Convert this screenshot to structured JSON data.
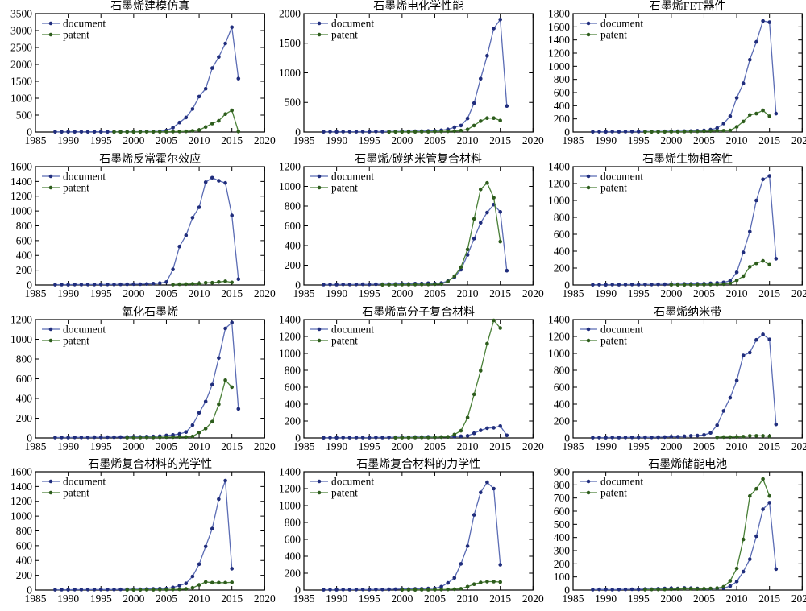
{
  "chart_data": {
    "type": "line",
    "x_axis": {
      "min": 1985,
      "max": 2020,
      "ticks": [
        1985,
        1990,
        1995,
        2000,
        2005,
        2010,
        2015,
        2020
      ]
    },
    "legend": {
      "position": "top-left-inside",
      "entries": [
        "document",
        "patent"
      ]
    },
    "grid": "off",
    "colors": {
      "document_line": "#5b6cb4",
      "document_marker": "#202d7c",
      "patent_line": "#4a8038",
      "patent_marker": "#2d5c1c",
      "axis": "#000000",
      "text": "#000000",
      "background": "#ffffff"
    },
    "charts": [
      {
        "title": "石墨烯建模仿真",
        "ylim": [
          0,
          3500
        ],
        "ystep": 500,
        "yticks": [
          0,
          500,
          1000,
          1500,
          2000,
          2500,
          3000,
          3500
        ],
        "document": {
          "start_year": 1988,
          "values": [
            4,
            5,
            4,
            6,
            5,
            6,
            7,
            6,
            8,
            7,
            9,
            10,
            12,
            11,
            14,
            15,
            18,
            45,
            130,
            280,
            430,
            680,
            1050,
            1280,
            1890,
            2220,
            2620,
            3100,
            1580
          ]
        },
        "patent": {
          "start_year": 1997,
          "values": [
            2,
            2,
            3,
            3,
            4,
            5,
            6,
            8,
            10,
            12,
            15,
            20,
            35,
            60,
            150,
            250,
            330,
            530,
            640,
            15
          ]
        }
      },
      {
        "title": "石墨烯电化学性能",
        "ylim": [
          0,
          2000
        ],
        "ystep": 500,
        "yticks": [
          0,
          500,
          1000,
          1500,
          2000
        ],
        "document": {
          "start_year": 1988,
          "values": [
            4,
            5,
            4,
            6,
            5,
            6,
            7,
            6,
            8,
            7,
            9,
            10,
            12,
            11,
            14,
            15,
            18,
            20,
            30,
            45,
            80,
            110,
            230,
            490,
            900,
            1290,
            1750,
            1900,
            440
          ]
        },
        "patent": {
          "start_year": 1998,
          "values": [
            2,
            3,
            3,
            4,
            4,
            5,
            6,
            8,
            10,
            12,
            15,
            25,
            45,
            110,
            185,
            235,
            235,
            195
          ]
        }
      },
      {
        "title": "石墨烯FET器件",
        "ylim": [
          0,
          1800
        ],
        "ystep": 200,
        "yticks": [
          0,
          200,
          400,
          600,
          800,
          1000,
          1200,
          1400,
          1600,
          1800
        ],
        "document": {
          "start_year": 1988,
          "values": [
            4,
            5,
            4,
            6,
            5,
            6,
            7,
            6,
            8,
            7,
            9,
            10,
            12,
            11,
            14,
            15,
            20,
            25,
            35,
            60,
            130,
            240,
            520,
            740,
            1100,
            1370,
            1690,
            1670,
            280
          ]
        },
        "patent": {
          "start_year": 1996,
          "values": [
            3,
            3,
            4,
            4,
            5,
            5,
            6,
            8,
            10,
            12,
            15,
            18,
            20,
            25,
            80,
            160,
            260,
            280,
            330,
            240
          ]
        }
      },
      {
        "title": "石墨烯反常霍尔效应",
        "ylim": [
          0,
          1600
        ],
        "ystep": 200,
        "yticks": [
          0,
          200,
          400,
          600,
          800,
          1000,
          1200,
          1400,
          1600
        ],
        "document": {
          "start_year": 1988,
          "values": [
            4,
            5,
            4,
            6,
            5,
            6,
            7,
            6,
            8,
            7,
            9,
            10,
            12,
            11,
            14,
            18,
            25,
            40,
            210,
            520,
            670,
            910,
            1050,
            1390,
            1450,
            1410,
            1380,
            940,
            80
          ]
        },
        "patent": {
          "start_year": 2006,
          "values": [
            5,
            10,
            12,
            15,
            18,
            30,
            30,
            40,
            50,
            35
          ]
        }
      },
      {
        "title": "石墨烯/碳纳米管复合材料",
        "ylim": [
          0,
          1200
        ],
        "ystep": 200,
        "yticks": [
          0,
          200,
          400,
          600,
          800,
          1000,
          1200
        ],
        "document": {
          "start_year": 1988,
          "values": [
            4,
            5,
            4,
            6,
            5,
            6,
            7,
            6,
            8,
            7,
            9,
            10,
            12,
            11,
            14,
            15,
            18,
            15,
            20,
            40,
            80,
            155,
            305,
            470,
            630,
            735,
            815,
            740,
            145
          ]
        },
        "patent": {
          "start_year": 1997,
          "values": [
            2,
            3,
            3,
            4,
            4,
            5,
            5,
            6,
            8,
            10,
            35,
            90,
            180,
            360,
            670,
            970,
            1035,
            885,
            440
          ]
        }
      },
      {
        "title": "石墨烯生物相容性",
        "ylim": [
          0,
          1400
        ],
        "ystep": 200,
        "yticks": [
          0,
          200,
          400,
          600,
          800,
          1000,
          1200,
          1400
        ],
        "document": {
          "start_year": 1988,
          "values": [
            3,
            4,
            3,
            5,
            4,
            5,
            6,
            5,
            7,
            6,
            8,
            9,
            10,
            9,
            12,
            12,
            14,
            15,
            20,
            25,
            30,
            50,
            150,
            385,
            630,
            1000,
            1250,
            1290,
            310
          ]
        },
        "patent": {
          "start_year": 2000,
          "values": [
            2,
            3,
            3,
            4,
            4,
            5,
            6,
            8,
            10,
            20,
            55,
            105,
            215,
            255,
            285,
            240
          ]
        }
      },
      {
        "title": "氧化石墨烯",
        "ylim": [
          0,
          1200
        ],
        "ystep": 200,
        "yticks": [
          0,
          200,
          400,
          600,
          800,
          1000,
          1200
        ],
        "document": {
          "start_year": 1988,
          "values": [
            4,
            5,
            4,
            6,
            5,
            6,
            7,
            6,
            8,
            7,
            9,
            10,
            12,
            11,
            14,
            15,
            18,
            25,
            30,
            40,
            60,
            130,
            255,
            370,
            540,
            810,
            1110,
            1170,
            295
          ]
        },
        "patent": {
          "start_year": 1999,
          "values": [
            3,
            4,
            4,
            5,
            5,
            6,
            8,
            8,
            10,
            10,
            15,
            55,
            95,
            165,
            340,
            585,
            515
          ]
        }
      },
      {
        "title": "石墨烯高分子复合材料",
        "ylim": [
          0,
          1400
        ],
        "ystep": 200,
        "yticks": [
          0,
          200,
          400,
          600,
          800,
          1000,
          1200,
          1400
        ],
        "document": {
          "start_year": 1988,
          "values": [
            3,
            4,
            3,
            5,
            4,
            5,
            5,
            4,
            6,
            5,
            7,
            8,
            9,
            8,
            10,
            10,
            12,
            8,
            10,
            12,
            15,
            20,
            25,
            55,
            90,
            115,
            120,
            140,
            30
          ]
        },
        "patent": {
          "start_year": 1999,
          "values": [
            3,
            4,
            4,
            5,
            6,
            6,
            8,
            10,
            12,
            40,
            85,
            240,
            515,
            795,
            1115,
            1390,
            1300
          ]
        }
      },
      {
        "title": "石墨烯纳米带",
        "ylim": [
          0,
          1400
        ],
        "ystep": 200,
        "yticks": [
          0,
          200,
          400,
          600,
          800,
          1000,
          1200,
          1400
        ],
        "document": {
          "start_year": 1988,
          "values": [
            4,
            5,
            4,
            6,
            5,
            6,
            7,
            6,
            8,
            7,
            9,
            10,
            15,
            13,
            20,
            25,
            28,
            35,
            60,
            150,
            320,
            475,
            680,
            975,
            1010,
            1160,
            1225,
            1165,
            160
          ]
        },
        "patent": {
          "start_year": 2007,
          "values": [
            8,
            10,
            10,
            12,
            15,
            25,
            25,
            25,
            20
          ]
        }
      },
      {
        "title": "石墨烯复合材料的光学性",
        "ylim": [
          0,
          1600
        ],
        "ystep": 200,
        "yticks": [
          0,
          200,
          400,
          600,
          800,
          1000,
          1200,
          1400,
          1600
        ],
        "document": {
          "start_year": 1988,
          "values": [
            4,
            5,
            4,
            6,
            5,
            6,
            7,
            6,
            8,
            7,
            9,
            10,
            12,
            11,
            14,
            15,
            18,
            20,
            35,
            60,
            90,
            185,
            350,
            590,
            830,
            1230,
            1480,
            290
          ]
        },
        "patent": {
          "start_year": 1999,
          "values": [
            2,
            3,
            3,
            4,
            4,
            5,
            6,
            8,
            10,
            15,
            30,
            70,
            110,
            100,
            100,
            100,
            105
          ]
        }
      },
      {
        "title": "石墨烯复合材料的力学性",
        "ylim": [
          0,
          1400
        ],
        "ystep": 200,
        "yticks": [
          0,
          200,
          400,
          600,
          800,
          1000,
          1200,
          1400
        ],
        "document": {
          "start_year": 1988,
          "values": [
            4,
            5,
            4,
            6,
            5,
            6,
            7,
            6,
            8,
            7,
            9,
            10,
            12,
            11,
            14,
            15,
            18,
            20,
            40,
            85,
            145,
            310,
            520,
            890,
            1155,
            1275,
            1200,
            300
          ]
        },
        "patent": {
          "start_year": 2000,
          "values": [
            2,
            3,
            3,
            4,
            4,
            5,
            6,
            8,
            10,
            15,
            40,
            70,
            90,
            100,
            100,
            95
          ]
        }
      },
      {
        "title": "石墨烯储能电池",
        "ylim": [
          0,
          900
        ],
        "ystep": 100,
        "yticks": [
          0,
          100,
          200,
          300,
          400,
          500,
          600,
          700,
          800,
          900
        ],
        "document": {
          "start_year": 1988,
          "values": [
            3,
            5,
            4,
            3,
            4,
            5,
            6,
            5,
            8,
            7,
            10,
            12,
            14,
            12,
            16,
            14,
            12,
            8,
            10,
            12,
            15,
            30,
            65,
            140,
            235,
            410,
            615,
            665,
            160
          ]
        },
        "patent": {
          "start_year": 1996,
          "values": [
            3,
            4,
            4,
            5,
            6,
            8,
            10,
            10,
            8,
            10,
            12,
            15,
            25,
            70,
            165,
            385,
            715,
            770,
            845,
            715
          ]
        }
      }
    ]
  }
}
